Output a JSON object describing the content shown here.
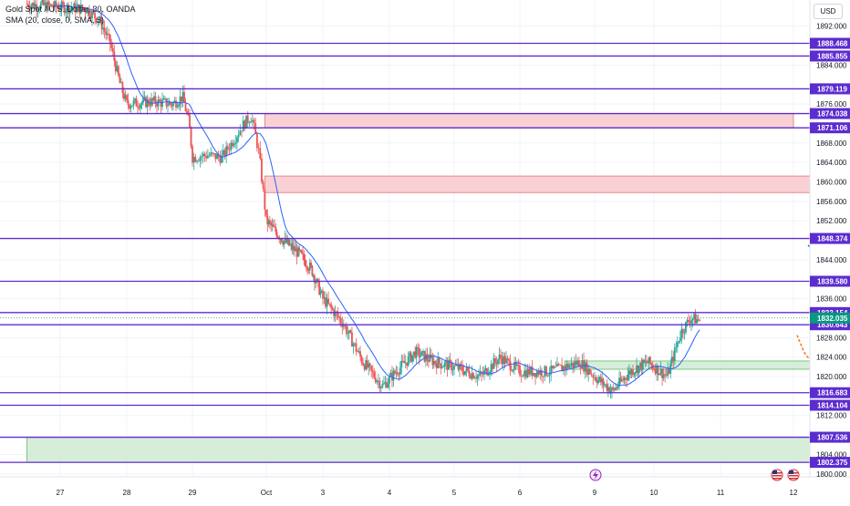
{
  "header": {
    "symbol_title": "Gold Spot / U.S. Dollar, 30, OANDA",
    "indicator_label": "SMA (20, close, 0, SMA, 5)",
    "currency_button": "USD"
  },
  "colors": {
    "background": "#ffffff",
    "grid": "#f0f3fa",
    "up_candle": "#26a69a",
    "down_candle": "#ef5350",
    "sma_line": "#2962ff",
    "horizontal_level": "#5b2ccf",
    "resistance_zone": "#f8c9cc",
    "support_zone": "#cfead2",
    "current_price_badge": "#089981",
    "arrow_blue": "#1e5bd8",
    "arrow_red": "#e02020",
    "curve_green": "#2e8b2e",
    "curve_orange": "#ff6a00"
  },
  "icons": [
    "flash-icon",
    "us-flag-icon"
  ],
  "chart_data": {
    "type": "candlestick",
    "instrument": "Gold Spot / U.S. Dollar",
    "timeframe": "30",
    "source": "OANDA",
    "ylim": [
      1800,
      1896
    ],
    "y_ticks": [
      "1892.000",
      "1884.000",
      "1876.000",
      "1868.000",
      "1864.000",
      "1860.000",
      "1856.000",
      "1852.000",
      "1844.000",
      "1836.000",
      "1828.000",
      "1824.000",
      "1820.000",
      "1812.000",
      "1804.000",
      "1800.000"
    ],
    "x_ticks": [
      "27",
      "28",
      "29",
      "Oct",
      "3",
      "4",
      "5",
      "6",
      "9",
      "10",
      "11",
      "12"
    ],
    "x_domain": [
      26.5,
      12.5
    ],
    "horizontal_levels": [
      {
        "value": "1888.468",
        "price": 1888.468
      },
      {
        "value": "1885.855",
        "price": 1885.855
      },
      {
        "value": "1879.119",
        "price": 1879.119
      },
      {
        "value": "1874.038",
        "price": 1874.038
      },
      {
        "value": "1871.106",
        "price": 1871.106
      },
      {
        "value": "1848.374",
        "price": 1848.374
      },
      {
        "value": "1839.580",
        "price": 1839.58
      },
      {
        "value": "1833.154",
        "price": 1833.154
      },
      {
        "value": "1830.643",
        "price": 1830.643
      },
      {
        "value": "1816.683",
        "price": 1816.683
      },
      {
        "value": "1814.104",
        "price": 1814.104
      },
      {
        "value": "1807.536",
        "price": 1807.536
      },
      {
        "value": "1802.375",
        "price": 1802.375
      }
    ],
    "current_price": {
      "value": "1832.035",
      "price": 1832.035
    },
    "zones": [
      {
        "kind": "resistance",
        "from_x": 0.98,
        "to_x": 9.0,
        "low": 1871.106,
        "high": 1874.038
      },
      {
        "kind": "resistance",
        "from_x": 0.98,
        "to_x": 11.7,
        "low": 1857.8,
        "high": 1861.2
      },
      {
        "kind": "support",
        "from_x": 5.6,
        "to_x": 10.7,
        "low": 1821.5,
        "high": 1823.2
      },
      {
        "kind": "support",
        "from_x": 26.5,
        "to_x": 12.5,
        "low": 1802.375,
        "high": 1807.536
      }
    ],
    "sma_period": 20,
    "anchors": [
      [
        26.5,
        1896.5
      ],
      [
        27.4,
        1895.5
      ],
      [
        27.6,
        1893.0
      ],
      [
        27.75,
        1888.5
      ],
      [
        27.9,
        1880.0
      ],
      [
        28.0,
        1876.0
      ],
      [
        28.4,
        1876.5
      ],
      [
        28.7,
        1876.0
      ],
      [
        28.85,
        1877.5
      ],
      [
        28.95,
        1872.0
      ],
      [
        29.0,
        1865.0
      ],
      [
        29.2,
        1865.5
      ],
      [
        29.4,
        1865.0
      ],
      [
        29.7,
        1872.0
      ],
      [
        29.8,
        1873.5
      ],
      [
        29.9,
        1866.0
      ],
      [
        30.0,
        1852.0
      ],
      [
        30.3,
        1848.0
      ],
      [
        30.6,
        1845.0
      ],
      [
        30.8,
        1842.0
      ],
      [
        31.0,
        1836.0
      ],
      [
        31.3,
        1831.0
      ],
      [
        31.6,
        1823.0
      ],
      [
        31.9,
        1818.0
      ],
      [
        32.1,
        1821.0
      ],
      [
        32.4,
        1825.0
      ],
      [
        32.7,
        1823.0
      ],
      [
        33.0,
        1822.0
      ],
      [
        33.4,
        1820.0
      ],
      [
        33.7,
        1824.0
      ],
      [
        34.0,
        1821.0
      ],
      [
        34.4,
        1821.0
      ],
      [
        34.8,
        1823.0
      ],
      [
        35.0,
        1820.0
      ],
      [
        35.3,
        1817.0
      ],
      [
        35.6,
        1821.0
      ],
      [
        35.9,
        1823.0
      ],
      [
        36.2,
        1820.0
      ],
      [
        36.4,
        1829.0
      ],
      [
        36.55,
        1832.0
      ],
      [
        36.7,
        1831.5
      ]
    ],
    "annotations": [
      {
        "kind": "arrow",
        "color": "blue",
        "from": [
          9.2,
          1847.0
        ],
        "to": [
          9.95,
          1836.2
        ]
      },
      {
        "kind": "arrow",
        "color": "red",
        "from": [
          10.4,
          1859.8
        ],
        "to": [
          11.0,
          1848.6
        ]
      },
      {
        "kind": "curve",
        "color": "orange",
        "style": "dashed",
        "points": [
          [
            9.05,
            1828.5
          ],
          [
            9.2,
            1823.0
          ],
          [
            9.45,
            1823.5
          ],
          [
            9.65,
            1831.0
          ],
          [
            9.85,
            1846.5
          ]
        ]
      },
      {
        "kind": "curve",
        "color": "green",
        "style": "solid",
        "points": [
          [
            9.3,
            1828.0
          ],
          [
            9.7,
            1823.5
          ],
          [
            10.2,
            1824.0
          ],
          [
            10.55,
            1832.0
          ],
          [
            10.75,
            1859.3
          ]
        ]
      }
    ]
  }
}
